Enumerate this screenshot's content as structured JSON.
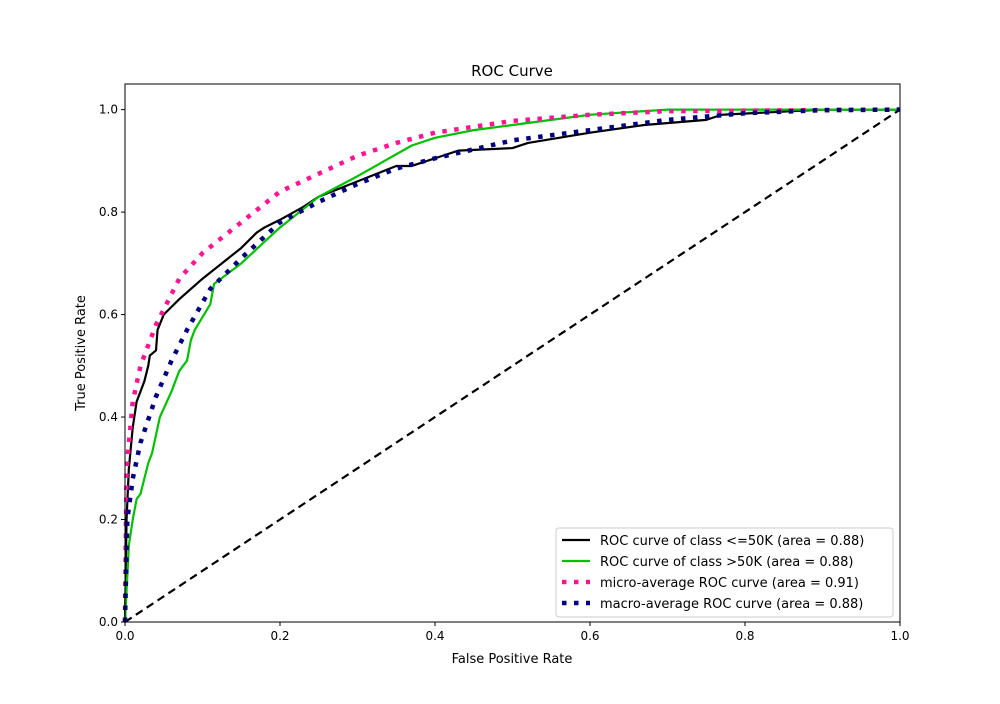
{
  "chart_data": {
    "type": "line",
    "title": "ROC Curve",
    "xlabel": "False Positive Rate",
    "ylabel": "True Positive Rate",
    "xlim": [
      0.0,
      1.0
    ],
    "ylim": [
      0.0,
      1.05
    ],
    "xticks": [
      "0.0",
      "0.2",
      "0.4",
      "0.6",
      "0.8",
      "1.0"
    ],
    "yticks": [
      "0.0",
      "0.2",
      "0.4",
      "0.6",
      "0.8",
      "1.0"
    ],
    "grid": false,
    "legend_position": "lower-right",
    "series": [
      {
        "name": "ROC curve of class  <=50K (area = 0.88)",
        "color": "#000000",
        "style": "solid",
        "x": [
          0,
          0.002,
          0.005,
          0.01,
          0.015,
          0.02,
          0.025,
          0.03,
          0.032,
          0.04,
          0.042,
          0.05,
          0.06,
          0.07,
          0.1,
          0.15,
          0.17,
          0.18,
          0.2,
          0.23,
          0.25,
          0.3,
          0.35,
          0.37,
          0.43,
          0.5,
          0.52,
          0.6,
          0.67,
          0.75,
          0.77,
          0.9,
          1.0
        ],
        "y": [
          0,
          0.2,
          0.3,
          0.38,
          0.43,
          0.45,
          0.47,
          0.5,
          0.52,
          0.53,
          0.57,
          0.6,
          0.615,
          0.63,
          0.67,
          0.73,
          0.76,
          0.77,
          0.785,
          0.81,
          0.83,
          0.86,
          0.89,
          0.89,
          0.92,
          0.925,
          0.935,
          0.955,
          0.97,
          0.98,
          0.99,
          1.0,
          1.0
        ]
      },
      {
        "name": "ROC curve of class  >50K (area = 0.88)",
        "color": "#00c000",
        "style": "solid",
        "x": [
          0,
          0.005,
          0.01,
          0.015,
          0.02,
          0.025,
          0.03,
          0.035,
          0.045,
          0.06,
          0.07,
          0.08,
          0.085,
          0.09,
          0.11,
          0.115,
          0.15,
          0.2,
          0.25,
          0.3,
          0.37,
          0.4,
          0.45,
          0.5,
          0.6,
          0.7,
          1.0
        ],
        "y": [
          0,
          0.15,
          0.2,
          0.24,
          0.25,
          0.28,
          0.31,
          0.33,
          0.4,
          0.45,
          0.49,
          0.51,
          0.55,
          0.57,
          0.62,
          0.66,
          0.7,
          0.77,
          0.83,
          0.87,
          0.93,
          0.945,
          0.96,
          0.97,
          0.99,
          1.0,
          1.0
        ]
      },
      {
        "name": "micro-average ROC curve (area = 0.91)",
        "color": "#ff1493",
        "style": "dotted",
        "x": [
          0,
          0.002,
          0.01,
          0.02,
          0.04,
          0.07,
          0.1,
          0.15,
          0.2,
          0.25,
          0.3,
          0.35,
          0.4,
          0.5,
          0.6,
          0.7,
          1.0
        ],
        "y": [
          0,
          0.3,
          0.43,
          0.5,
          0.58,
          0.67,
          0.72,
          0.78,
          0.84,
          0.875,
          0.91,
          0.935,
          0.955,
          0.978,
          0.99,
          0.997,
          1.0
        ]
      },
      {
        "name": "macro-average ROC curve (area = 0.88)",
        "color": "#000080",
        "style": "dotted",
        "x": [
          0,
          0.003,
          0.01,
          0.02,
          0.04,
          0.06,
          0.08,
          0.11,
          0.15,
          0.2,
          0.25,
          0.3,
          0.35,
          0.4,
          0.5,
          0.6,
          0.7,
          0.8,
          0.9,
          1.0
        ],
        "y": [
          0,
          0.2,
          0.28,
          0.35,
          0.44,
          0.51,
          0.57,
          0.65,
          0.71,
          0.78,
          0.82,
          0.855,
          0.885,
          0.905,
          0.94,
          0.96,
          0.98,
          0.993,
          0.999,
          1.0
        ]
      }
    ],
    "reference_line": {
      "x": [
        0,
        1
      ],
      "y": [
        0,
        1
      ],
      "color": "#000000",
      "style": "dashed"
    }
  }
}
